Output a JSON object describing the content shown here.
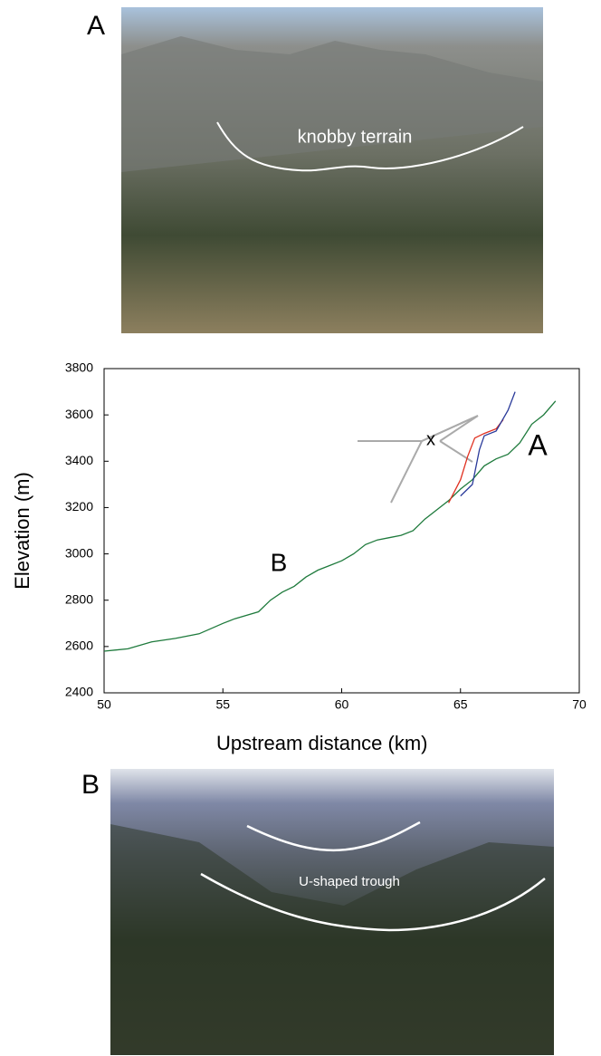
{
  "photos": [
    {
      "label": "A",
      "caption": "knobby terrain"
    },
    {
      "label": "B",
      "caption": "U-shaped trough"
    }
  ],
  "chart_data": {
    "type": "line",
    "xlabel": "Upstream distance (km)",
    "ylabel": "Elevation (m)",
    "xlim": [
      50,
      70
    ],
    "xticks": [
      50,
      55,
      60,
      65,
      70
    ],
    "ylim": [
      2400,
      3800
    ],
    "yticks": [
      2400,
      2600,
      2800,
      3000,
      3200,
      3400,
      3600,
      3800
    ],
    "annotations": [
      "B",
      "A",
      "x"
    ],
    "series": [
      {
        "color": "#1e7a3c",
        "x": [
          50,
          51,
          52,
          53,
          54,
          55,
          55.5,
          56.5,
          57,
          57.5,
          58,
          58.5,
          59,
          59.5,
          60,
          60.5,
          61,
          61.5,
          62,
          62.5,
          63,
          63.5,
          64,
          64.5,
          65,
          65.5,
          66,
          66.5,
          67,
          67.5,
          68,
          68.5,
          69
        ],
        "values": [
          2580,
          2590,
          2620,
          2635,
          2655,
          2700,
          2720,
          2750,
          2800,
          2835,
          2860,
          2900,
          2930,
          2950,
          2970,
          3000,
          3040,
          3060,
          3070,
          3080,
          3100,
          3150,
          3190,
          3230,
          3280,
          3320,
          3380,
          3410,
          3430,
          3480,
          3560,
          3600,
          3660
        ]
      },
      {
        "color": "#e03020",
        "x": [
          64.5,
          65,
          65.3,
          65.6,
          66,
          66.5,
          66.8
        ],
        "values": [
          3220,
          3320,
          3420,
          3500,
          3520,
          3540,
          3580
        ]
      },
      {
        "color": "#2a3a9a",
        "x": [
          65,
          65.5,
          65.8,
          66,
          66.5,
          67,
          67.3
        ],
        "values": [
          3250,
          3300,
          3450,
          3510,
          3530,
          3620,
          3700
        ]
      }
    ]
  }
}
